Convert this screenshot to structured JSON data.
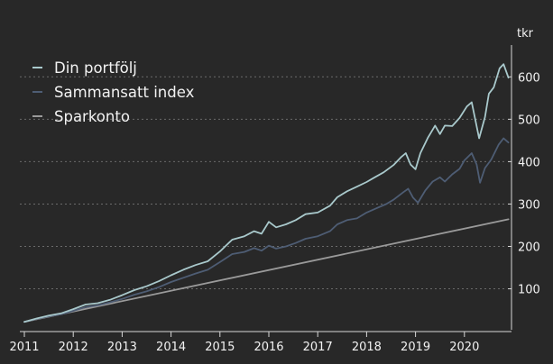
{
  "chart_data": {
    "type": "line",
    "title": "",
    "xlabel": "",
    "ylabel": "",
    "y_unit_label": "tkr",
    "x_range": [
      2011,
      2020.9
    ],
    "ylim": [
      0,
      650
    ],
    "x_ticks": [
      "2011",
      "2012",
      "2013",
      "2014",
      "2015",
      "2016",
      "2017",
      "2018",
      "2019",
      "2020"
    ],
    "y_ticks": [
      "100",
      "200",
      "300",
      "400",
      "500",
      "600"
    ],
    "y_tick_values": [
      100,
      200,
      300,
      400,
      500,
      600
    ],
    "grid": "horizontal dotted",
    "legend_position": "top-left",
    "colors": {
      "background": "#282828",
      "text": "#f2f2f2",
      "axis": "#d8d8d8",
      "grid": "#6a6a6a"
    },
    "series": [
      {
        "name": "Din portfölj",
        "color": "#a9c9cc",
        "points": [
          [
            2011.0,
            22
          ],
          [
            2011.25,
            30
          ],
          [
            2011.5,
            37
          ],
          [
            2011.75,
            42
          ],
          [
            2012.0,
            52
          ],
          [
            2012.25,
            63
          ],
          [
            2012.5,
            66
          ],
          [
            2012.75,
            74
          ],
          [
            2013.0,
            85
          ],
          [
            2013.25,
            97
          ],
          [
            2013.5,
            106
          ],
          [
            2013.75,
            118
          ],
          [
            2014.0,
            132
          ],
          [
            2014.25,
            145
          ],
          [
            2014.5,
            156
          ],
          [
            2014.75,
            165
          ],
          [
            2015.0,
            188
          ],
          [
            2015.25,
            216
          ],
          [
            2015.5,
            224
          ],
          [
            2015.7,
            236
          ],
          [
            2015.85,
            230
          ],
          [
            2016.0,
            258
          ],
          [
            2016.15,
            245
          ],
          [
            2016.35,
            252
          ],
          [
            2016.55,
            262
          ],
          [
            2016.75,
            276
          ],
          [
            2017.0,
            280
          ],
          [
            2017.25,
            296
          ],
          [
            2017.4,
            316
          ],
          [
            2017.6,
            330
          ],
          [
            2017.8,
            341
          ],
          [
            2018.0,
            352
          ],
          [
            2018.15,
            362
          ],
          [
            2018.35,
            375
          ],
          [
            2018.55,
            392
          ],
          [
            2018.7,
            410
          ],
          [
            2018.8,
            420
          ],
          [
            2018.9,
            393
          ],
          [
            2019.0,
            382
          ],
          [
            2019.1,
            420
          ],
          [
            2019.25,
            456
          ],
          [
            2019.4,
            485
          ],
          [
            2019.5,
            465
          ],
          [
            2019.6,
            485
          ],
          [
            2019.75,
            484
          ],
          [
            2019.9,
            503
          ],
          [
            2020.05,
            530
          ],
          [
            2020.15,
            540
          ],
          [
            2020.3,
            455
          ],
          [
            2020.42,
            505
          ],
          [
            2020.5,
            560
          ],
          [
            2020.6,
            575
          ],
          [
            2020.72,
            620
          ],
          [
            2020.8,
            630
          ],
          [
            2020.9,
            598
          ]
        ]
      },
      {
        "name": "Sammansatt index",
        "color": "#4e5d74",
        "points": [
          [
            2011.0,
            22
          ],
          [
            2011.25,
            29
          ],
          [
            2011.5,
            35
          ],
          [
            2011.75,
            40
          ],
          [
            2012.0,
            48
          ],
          [
            2012.25,
            57
          ],
          [
            2012.5,
            61
          ],
          [
            2012.75,
            68
          ],
          [
            2013.0,
            76
          ],
          [
            2013.25,
            86
          ],
          [
            2013.5,
            94
          ],
          [
            2013.75,
            104
          ],
          [
            2014.0,
            116
          ],
          [
            2014.25,
            126
          ],
          [
            2014.5,
            136
          ],
          [
            2014.75,
            145
          ],
          [
            2015.0,
            163
          ],
          [
            2015.25,
            182
          ],
          [
            2015.5,
            187
          ],
          [
            2015.7,
            196
          ],
          [
            2015.85,
            190
          ],
          [
            2016.0,
            202
          ],
          [
            2016.15,
            195
          ],
          [
            2016.35,
            200
          ],
          [
            2016.55,
            208
          ],
          [
            2016.75,
            218
          ],
          [
            2017.0,
            224
          ],
          [
            2017.25,
            236
          ],
          [
            2017.4,
            252
          ],
          [
            2017.6,
            262
          ],
          [
            2017.8,
            266
          ],
          [
            2018.0,
            280
          ],
          [
            2018.2,
            290
          ],
          [
            2018.4,
            300
          ],
          [
            2018.55,
            310
          ],
          [
            2018.75,
            328
          ],
          [
            2018.85,
            336
          ],
          [
            2018.95,
            315
          ],
          [
            2019.05,
            303
          ],
          [
            2019.2,
            332
          ],
          [
            2019.35,
            353
          ],
          [
            2019.5,
            363
          ],
          [
            2019.6,
            353
          ],
          [
            2019.75,
            370
          ],
          [
            2019.9,
            383
          ],
          [
            2020.0,
            403
          ],
          [
            2020.15,
            420
          ],
          [
            2020.25,
            393
          ],
          [
            2020.32,
            350
          ],
          [
            2020.42,
            385
          ],
          [
            2020.55,
            405
          ],
          [
            2020.7,
            440
          ],
          [
            2020.8,
            455
          ],
          [
            2020.9,
            445
          ]
        ]
      },
      {
        "name": "Sparkonto",
        "color": "#9a9a9a",
        "points": [
          [
            2011.0,
            22
          ],
          [
            2020.9,
            264
          ]
        ]
      }
    ]
  }
}
